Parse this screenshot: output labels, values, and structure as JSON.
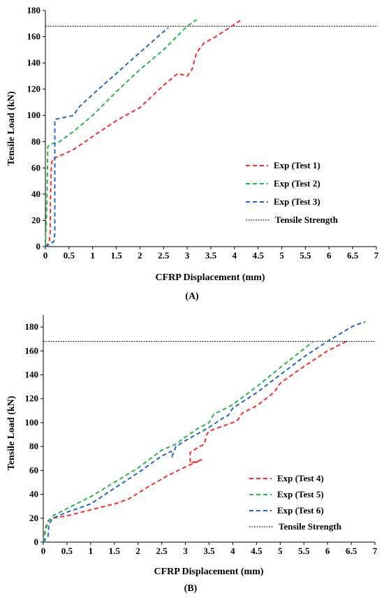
{
  "chart_data": [
    {
      "type": "line",
      "caption": "(A)",
      "xlabel": "CFRP Displacement (mm)",
      "ylabel": "Tensile Load (kN)",
      "xlim": [
        0,
        7
      ],
      "ylim": [
        0,
        180
      ],
      "xticks": [
        "0",
        "0.5",
        "1",
        "1.5",
        "2",
        "2.5",
        "3",
        "3.5",
        "4",
        "4.5",
        "5",
        "5.5",
        "6",
        "6.5",
        "7"
      ],
      "yticks": [
        "0",
        "20",
        "40",
        "60",
        "80",
        "100",
        "120",
        "140",
        "160",
        "180"
      ],
      "grid": false,
      "legend_position": "bottom-right",
      "reference_line": {
        "name": "Tensile Strength",
        "y": 168,
        "color": "#000000"
      },
      "series": [
        {
          "name": "Exp (Test 1)",
          "color": "#ff2b2b",
          "x": [
            0.0,
            0.08,
            0.1,
            0.11,
            0.12,
            0.13,
            0.15,
            0.3,
            0.6,
            1.0,
            1.5,
            2.0,
            2.5,
            2.8,
            3.0,
            3.1,
            3.2,
            3.35,
            3.6,
            3.9,
            4.15
          ],
          "y": [
            0,
            3,
            10,
            40,
            55,
            63,
            67,
            69,
            74,
            84,
            96,
            106,
            123,
            132,
            130,
            135,
            148,
            155,
            160,
            167,
            173
          ]
        },
        {
          "name": "Exp (Test 2)",
          "color": "#22bb44",
          "x": [
            0.0,
            0.02,
            0.04,
            0.05,
            0.1,
            0.3,
            0.6,
            1.0,
            1.5,
            2.0,
            2.5,
            3.0,
            3.2
          ],
          "y": [
            0,
            20,
            50,
            76,
            78,
            80,
            88,
            100,
            118,
            135,
            150,
            168,
            173
          ]
        },
        {
          "name": "Exp (Test 3)",
          "color": "#2266cc",
          "x": [
            0.0,
            0.1,
            0.18,
            0.2,
            0.2,
            0.6,
            0.7,
            1.0,
            1.5,
            2.0,
            2.6
          ],
          "y": [
            0,
            2,
            4,
            10,
            97,
            100,
            106,
            116,
            132,
            148,
            167
          ]
        }
      ]
    },
    {
      "type": "line",
      "caption": "(B)",
      "xlabel": "CFRP Displacement (mm)",
      "ylabel": "Tensile Load (kN)",
      "xlim": [
        0,
        7
      ],
      "ylim": [
        0,
        190
      ],
      "xticks": [
        "0",
        "0.5",
        "1",
        "1.5",
        "2",
        "2.5",
        "3",
        "3.5",
        "4",
        "4.5",
        "5",
        "5.5",
        "6",
        "6.5",
        "7"
      ],
      "yticks": [
        "0",
        "20",
        "40",
        "60",
        "80",
        "100",
        "120",
        "140",
        "160",
        "180"
      ],
      "grid": false,
      "legend_position": "bottom-right",
      "reference_line": {
        "name": "Tensile Strength",
        "y": 168,
        "color": "#000000"
      },
      "series": [
        {
          "name": "Exp (Test 4)",
          "color": "#ff2b2b",
          "x": [
            0.0,
            0.05,
            0.1,
            0.2,
            0.5,
            1.0,
            1.5,
            1.8,
            2.2,
            2.6,
            3.0,
            3.3,
            3.35,
            3.1,
            3.1,
            3.3,
            3.4,
            3.45,
            3.5,
            4.0,
            4.1,
            4.2,
            4.5,
            4.8,
            4.9,
            5.0,
            5.5,
            6.0,
            6.4
          ],
          "y": [
            0,
            12,
            18,
            20,
            22,
            27,
            32,
            36,
            46,
            55,
            63,
            68,
            69,
            66,
            75,
            80,
            82,
            90,
            93,
            100,
            102,
            108,
            114,
            123,
            127,
            133,
            147,
            160,
            168
          ]
        },
        {
          "name": "Exp (Test 5)",
          "color": "#22bb44",
          "x": [
            0.0,
            0.05,
            0.1,
            0.2,
            0.5,
            1.0,
            1.5,
            2.0,
            2.5,
            2.8,
            3.0,
            3.3,
            3.5,
            3.6,
            4.0,
            4.5,
            5.0,
            5.7
          ],
          "y": [
            0,
            10,
            17,
            22,
            28,
            38,
            50,
            62,
            77,
            82,
            88,
            96,
            100,
            107,
            115,
            130,
            146,
            168
          ]
        },
        {
          "name": "Exp (Test 6)",
          "color": "#2266cc",
          "x": [
            0.0,
            0.1,
            0.12,
            0.2,
            0.5,
            1.0,
            1.5,
            2.0,
            2.5,
            2.7,
            2.72,
            2.8,
            3.0,
            3.5,
            3.8,
            3.9,
            4.0,
            4.5,
            5.0,
            5.5,
            6.0,
            6.5,
            6.75,
            6.8
          ],
          "y": [
            0,
            5,
            15,
            20,
            25,
            32,
            45,
            58,
            72,
            76,
            72,
            80,
            85,
            96,
            104,
            106,
            112,
            125,
            140,
            155,
            168,
            180,
            184,
            184
          ]
        }
      ]
    }
  ]
}
